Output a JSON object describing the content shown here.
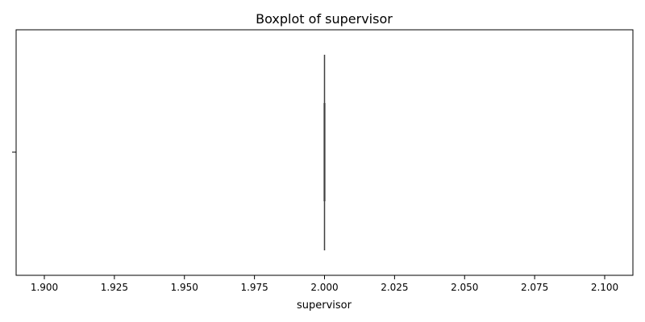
{
  "chart_data": {
    "type": "boxplot",
    "title": "Boxplot of supervisor",
    "xlabel": "supervisor",
    "ylabel": "",
    "xlim": [
      1.9,
      2.1
    ],
    "x_ticks": [
      "1.900",
      "1.925",
      "1.950",
      "1.975",
      "2.000",
      "2.025",
      "2.050",
      "2.075",
      "2.100"
    ],
    "orientation": "horizontal",
    "box": {
      "min": 2.0,
      "q1": 2.0,
      "median": 2.0,
      "q3": 2.0,
      "max": 2.0
    },
    "colors": {
      "axis": "#000000",
      "box_line": "#3f3f3f",
      "background": "#ffffff"
    },
    "grid": false
  }
}
